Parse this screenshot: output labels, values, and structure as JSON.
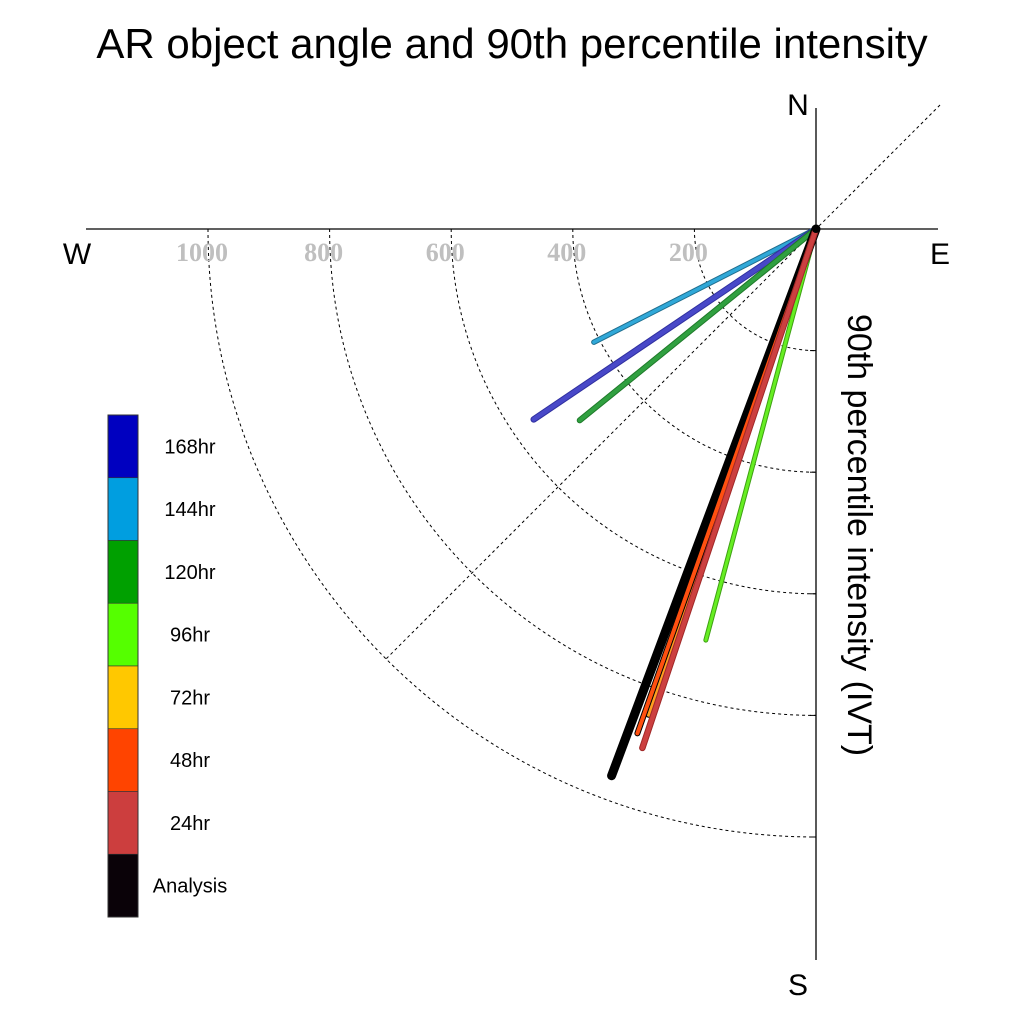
{
  "chart_data": {
    "type": "polar-vector",
    "title": "AR object angle and 90th percentile intensity",
    "ylabel": "90th percentile intensity (IVT)",
    "compass": {
      "north": "N",
      "south": "S",
      "east": "E",
      "west": "W"
    },
    "radial_ticks": [
      "200",
      "400",
      "600",
      "800",
      "1000"
    ],
    "radial_tick_values": [
      200,
      400,
      600,
      800,
      1000
    ],
    "rlim": [
      0,
      1000
    ],
    "grid": true,
    "legend_position": "left",
    "legend": [
      {
        "label": "168hr",
        "color": "#0000c0"
      },
      {
        "label": "144hr",
        "color": "#009ee0"
      },
      {
        "label": "120hr",
        "color": "#00a000"
      },
      {
        "label": "96hr",
        "color": "#55ff00"
      },
      {
        "label": "72hr",
        "color": "#ffc800"
      },
      {
        "label": "48hr",
        "color": "#ff4400"
      },
      {
        "label": "24hr",
        "color": "#cc3e3e"
      },
      {
        "label": "Analysis",
        "color": "#0a0208"
      }
    ],
    "series": [
      {
        "name": "144hr",
        "angle_deg": 243,
        "intensity": 410,
        "color": "#30a8d8",
        "outline": "#1f6e8e",
        "width": 3.5
      },
      {
        "name": "168hr",
        "angle_deg": 236,
        "intensity": 560,
        "color": "#4848c8",
        "outline": "#3030a0",
        "width": 4.5
      },
      {
        "name": "120hr",
        "angle_deg": 231,
        "intensity": 500,
        "color": "#30a040",
        "outline": "#1f7a2a",
        "width": 4
      },
      {
        "name": "96hr",
        "angle_deg": 195,
        "intensity": 700,
        "color": "#66ee22",
        "outline": "#3fa014",
        "width": 3
      },
      {
        "name": "Analysis",
        "angle_deg": 200.5,
        "intensity": 960,
        "color": "#000000",
        "outline": "#000000",
        "width": 7
      },
      {
        "name": "72hr",
        "angle_deg": 199,
        "intensity": 845,
        "color": "#ffa020",
        "outline": "#000000",
        "width": 4
      },
      {
        "name": "48hr",
        "angle_deg": 199.5,
        "intensity": 880,
        "color": "#ff5010",
        "outline": "#000000",
        "width": 4
      },
      {
        "name": "24hr",
        "angle_deg": 198.5,
        "intensity": 900,
        "color": "#cc4040",
        "outline": "#a02828",
        "width": 4.5
      }
    ]
  }
}
